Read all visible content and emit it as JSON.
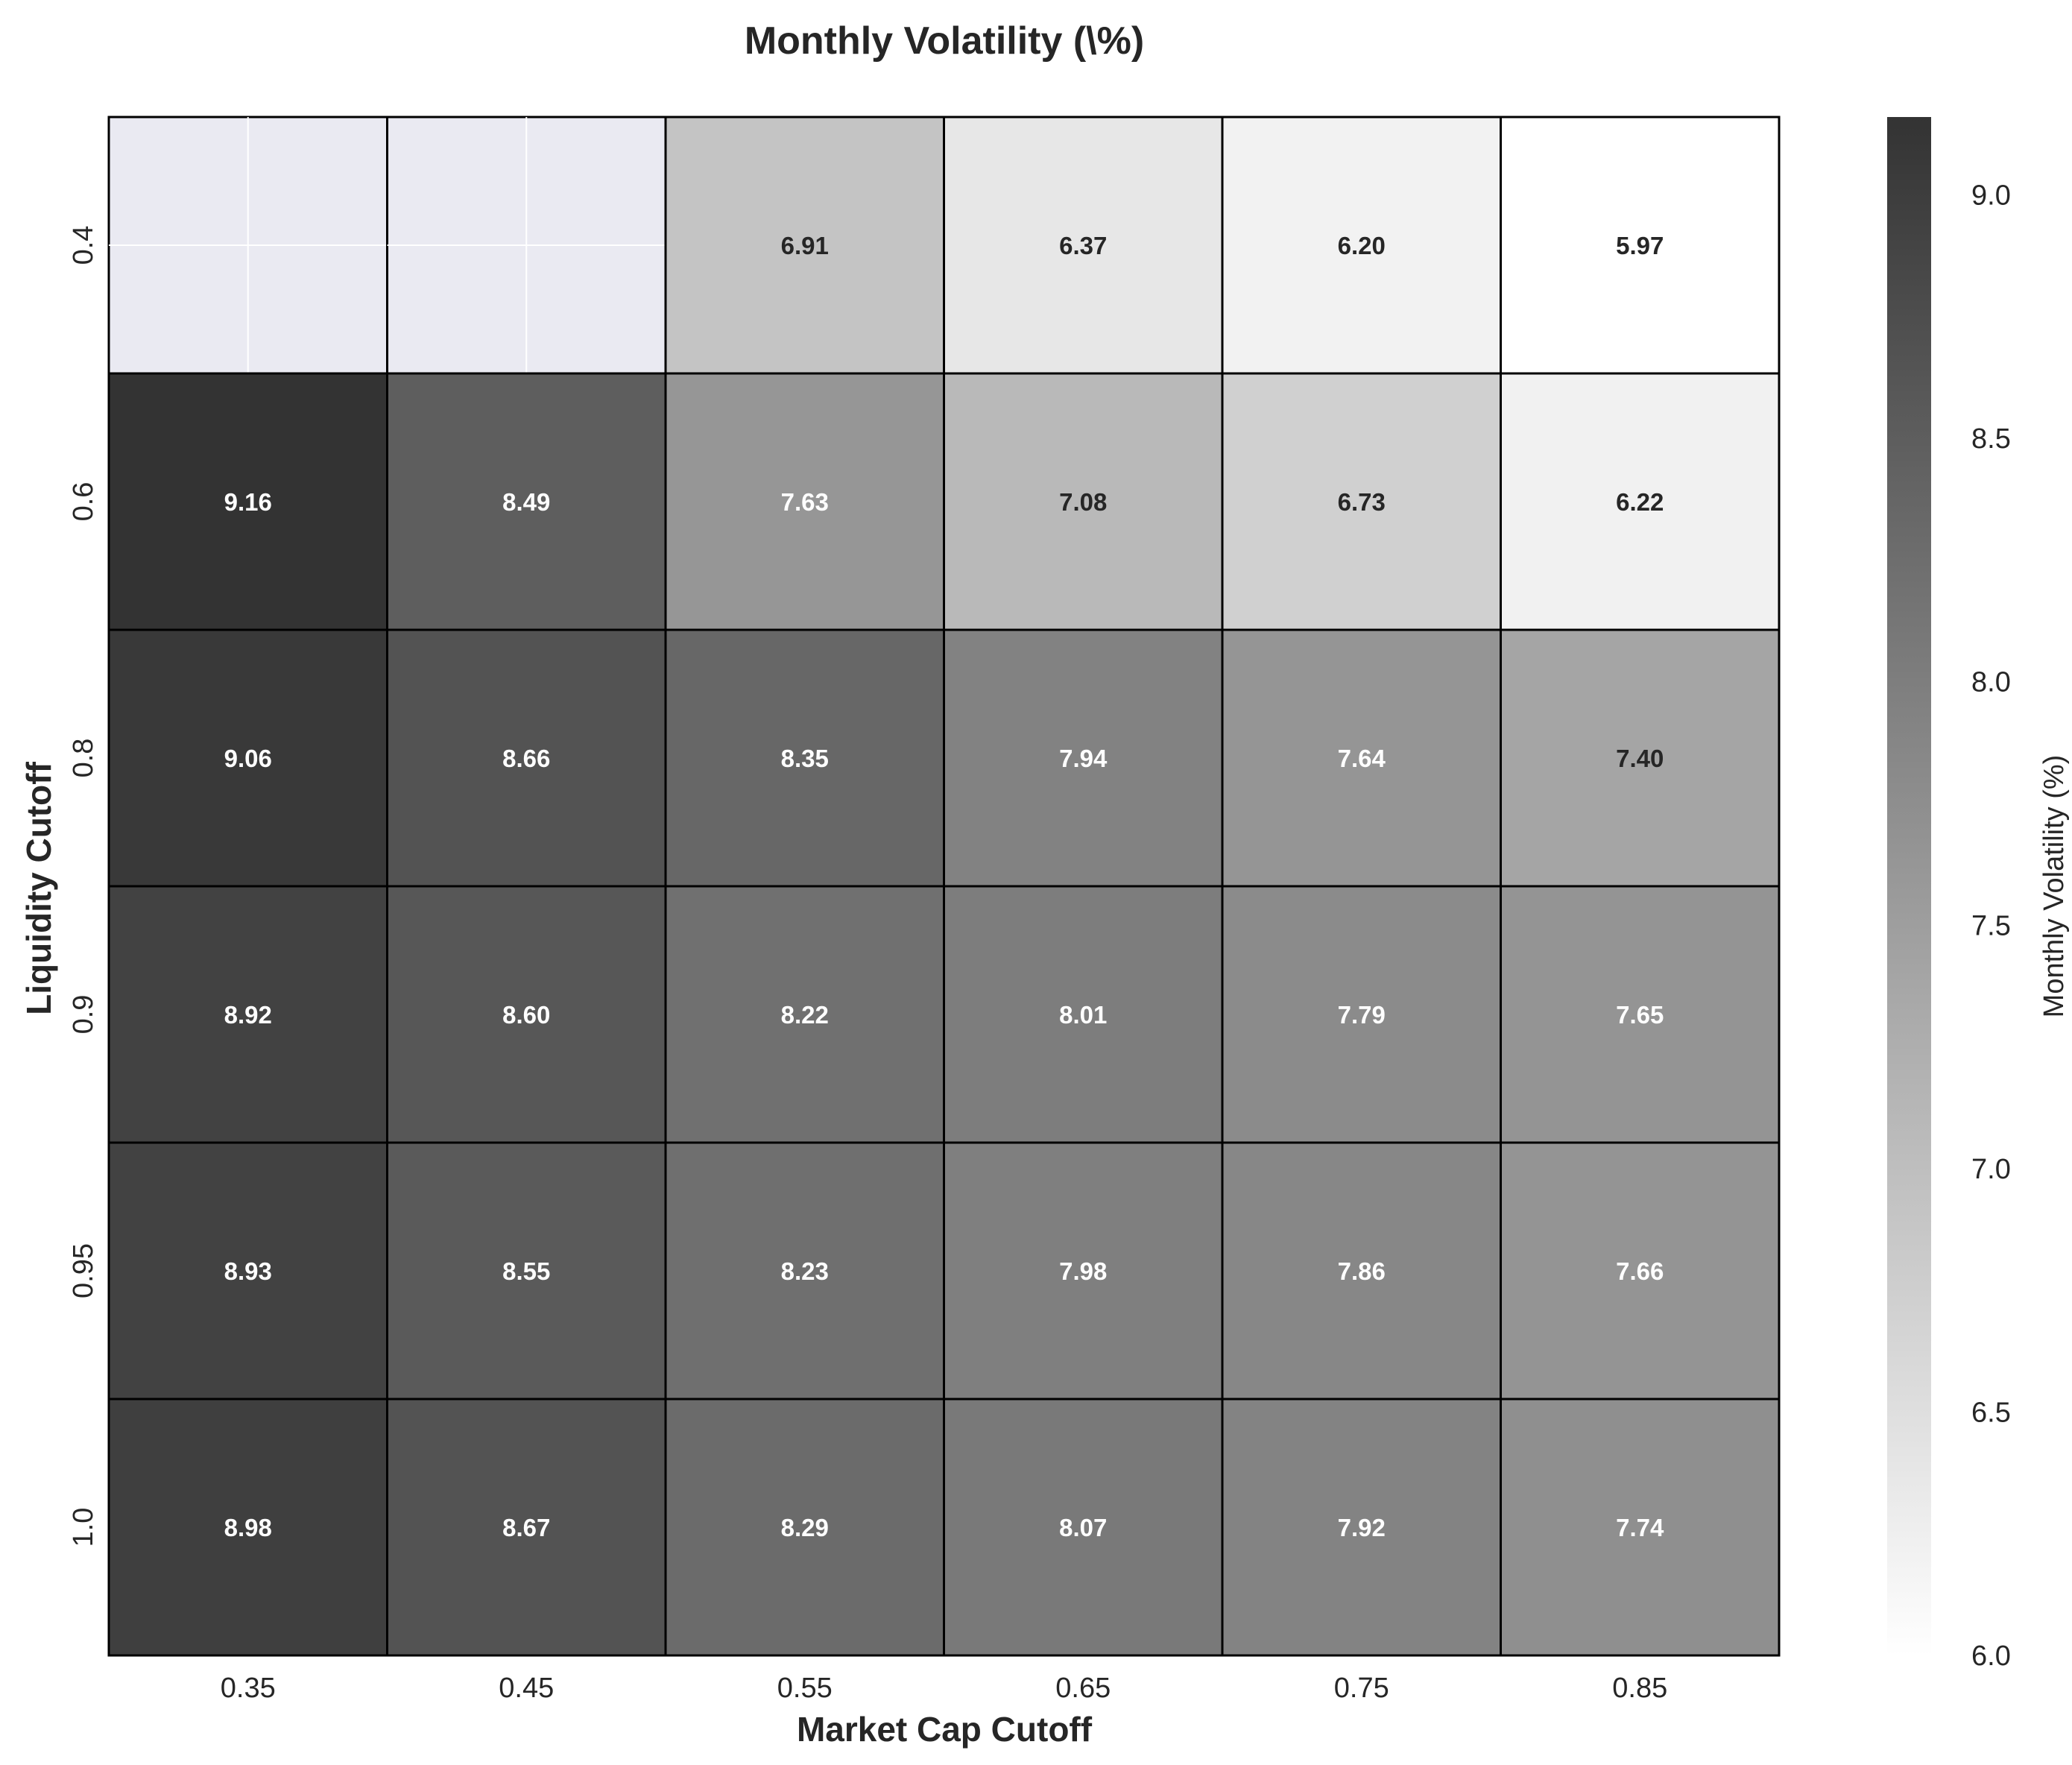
{
  "chart_data": {
    "type": "heatmap",
    "title": "Monthly Volatility (\\%)",
    "xlabel": "Market Cap Cutoff",
    "ylabel": "Liquidity Cutoff",
    "x_categories": [
      "0.35",
      "0.45",
      "0.55",
      "0.65",
      "0.75",
      "0.85"
    ],
    "y_categories": [
      "0.4",
      "0.6",
      "0.8",
      "0.9",
      "0.95",
      "1.0"
    ],
    "values": [
      [
        null,
        null,
        6.91,
        6.37,
        6.2,
        5.97
      ],
      [
        9.16,
        8.49,
        7.63,
        7.08,
        6.73,
        6.22
      ],
      [
        9.06,
        8.66,
        8.35,
        7.94,
        7.64,
        7.4
      ],
      [
        8.92,
        8.6,
        8.22,
        8.01,
        7.79,
        7.65
      ],
      [
        8.93,
        8.55,
        8.23,
        7.98,
        7.86,
        7.66
      ],
      [
        8.98,
        8.67,
        8.29,
        8.07,
        7.92,
        7.74
      ]
    ],
    "value_labels": [
      [
        "",
        "",
        "6.91",
        "6.37",
        "6.20",
        "5.97"
      ],
      [
        "9.16",
        "8.49",
        "7.63",
        "7.08",
        "6.73",
        "6.22"
      ],
      [
        "9.06",
        "8.66",
        "8.35",
        "7.94",
        "7.64",
        "7.40"
      ],
      [
        "8.92",
        "8.60",
        "8.22",
        "8.01",
        "7.79",
        "7.65"
      ],
      [
        "8.93",
        "8.55",
        "8.23",
        "7.98",
        "7.86",
        "7.66"
      ],
      [
        "8.98",
        "8.67",
        "8.29",
        "8.07",
        "7.92",
        "7.74"
      ]
    ],
    "colorbar": {
      "label": "Monthly Volatility (%)",
      "vmin": 6.0,
      "vmax": 9.16,
      "ticks": [
        6.0,
        6.5,
        7.0,
        7.5,
        8.0,
        8.5,
        9.0
      ],
      "tick_labels": [
        "6.0",
        "6.5",
        "7.0",
        "7.5",
        "8.0",
        "8.5",
        "9.0"
      ],
      "colormap": "greys",
      "color_low": "#ffffff",
      "color_high": "#333333"
    },
    "missing_cell_color": "#eaeaf2",
    "cell_border_color": "#000000",
    "grid": true
  }
}
